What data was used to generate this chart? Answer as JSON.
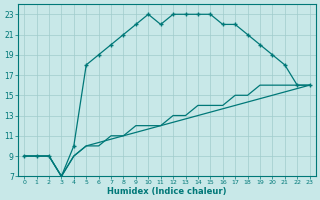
{
  "xlabel": "Humidex (Indice chaleur)",
  "bg_color": "#c8e8e8",
  "line_color": "#007878",
  "grid_color": "#a0cccc",
  "xlim": [
    -0.5,
    23.5
  ],
  "ylim": [
    7,
    24
  ],
  "xticks": [
    0,
    1,
    2,
    3,
    4,
    5,
    6,
    7,
    8,
    9,
    10,
    11,
    12,
    13,
    14,
    15,
    16,
    17,
    18,
    19,
    20,
    21,
    22,
    23
  ],
  "yticks": [
    7,
    9,
    11,
    13,
    15,
    17,
    19,
    21,
    23
  ],
  "line1_x": [
    0,
    1,
    2,
    3,
    4,
    5,
    6,
    7,
    8,
    9,
    10,
    11,
    12,
    13,
    14,
    15,
    16,
    17,
    18,
    19,
    20,
    21,
    22,
    23
  ],
  "line1_y": [
    9,
    9,
    9,
    7,
    10,
    18,
    19,
    20,
    21,
    22,
    23,
    22,
    23,
    23,
    23,
    23,
    22,
    22,
    21,
    20,
    19,
    18,
    16,
    16
  ],
  "line2_x": [
    0,
    2,
    3,
    4,
    5,
    23
  ],
  "line2_y": [
    9,
    9,
    7,
    9,
    10,
    16
  ],
  "line3_x": [
    0,
    2,
    3,
    4,
    5,
    6,
    7,
    8,
    9,
    10,
    11,
    12,
    13,
    14,
    15,
    16,
    17,
    18,
    19,
    20,
    21,
    22,
    23
  ],
  "line3_y": [
    9,
    9,
    7,
    9,
    10,
    10,
    11,
    11,
    12,
    12,
    12,
    13,
    13,
    14,
    14,
    14,
    15,
    15,
    16,
    16,
    16,
    16,
    16
  ]
}
